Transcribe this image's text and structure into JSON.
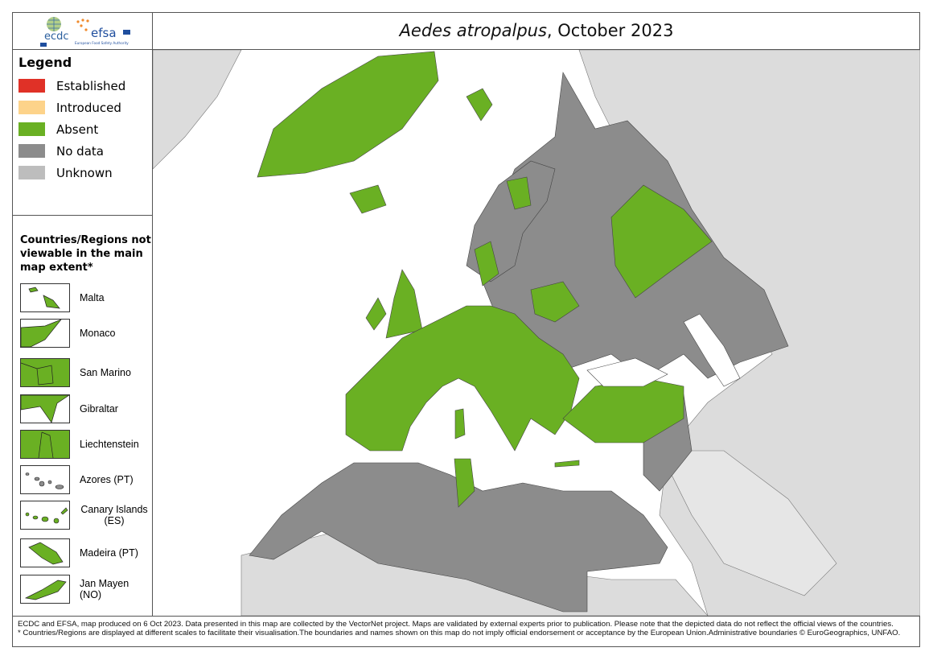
{
  "logos": {
    "ecdc": "ecdc",
    "efsa": "efsa",
    "efsa_tagline": "European Food Safety Authority"
  },
  "title": {
    "species": "Aedes atropalpus",
    "date": ", October 2023"
  },
  "legend": {
    "heading": "Legend",
    "items": [
      {
        "label": "Established",
        "color": "#e03127"
      },
      {
        "label": "Introduced",
        "color": "#fdd38a"
      },
      {
        "label": "Absent",
        "color": "#6ab023"
      },
      {
        "label": "No data",
        "color": "#8c8c8c"
      },
      {
        "label": "Unknown",
        "color": "#bdbdbd"
      }
    ]
  },
  "insets": {
    "heading": "Countries/Regions not viewable in the main map extent*",
    "items": [
      {
        "label": "Malta",
        "status": "Absent"
      },
      {
        "label": "Monaco",
        "status": "Absent"
      },
      {
        "label": "San Marino",
        "status": "Absent"
      },
      {
        "label": "Gibraltar",
        "status": "Absent"
      },
      {
        "label": "Liechtenstein",
        "status": "Absent"
      },
      {
        "label": "Azores (PT)",
        "status": "No data"
      },
      {
        "label": "Canary Islands (ES)",
        "status": "Absent"
      },
      {
        "label": "Madeira (PT)",
        "status": "Absent"
      },
      {
        "label": "Jan Mayen (NO)",
        "status": "Absent"
      }
    ]
  },
  "map_colors": {
    "sea": "#ffffff",
    "outside_land": "#dcdcdc",
    "no_data": "#8c8c8c",
    "absent": "#6ab023"
  },
  "footer": {
    "line1": "ECDC and EFSA, map produced on 6 Oct 2023. Data presented in this map are collected by the VectorNet project. Maps are validated by external experts prior to publication. Please note that the depicted data do not reflect the official views of the countries.",
    "line2": "* Countries/Regions are displayed at different scales to facilitate their visualisation.The boundaries and names shown on this map do not imply official endorsement or acceptance by the European Union.Administrative boundaries © EuroGeographics, UNFAO."
  }
}
